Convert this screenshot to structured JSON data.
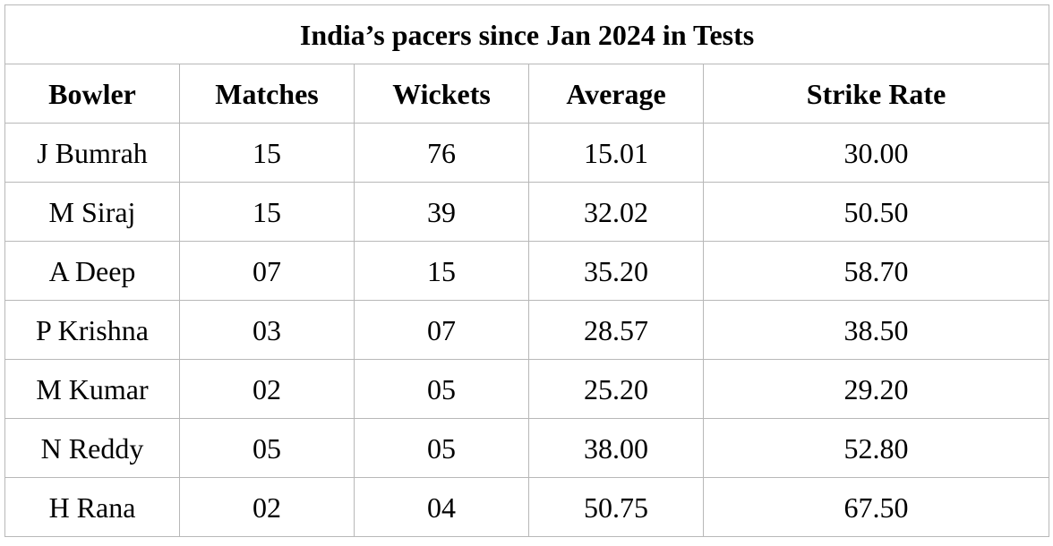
{
  "table": {
    "title": "India’s pacers since Jan 2024 in Tests",
    "headers": [
      "Bowler",
      "Matches",
      "Wickets",
      "Average",
      "Strike Rate"
    ],
    "rows": [
      [
        "J Bumrah",
        "15",
        "76",
        "15.01",
        "30.00"
      ],
      [
        "M Siraj",
        "15",
        "39",
        "32.02",
        "50.50"
      ],
      [
        "A Deep",
        "07",
        "15",
        "35.20",
        "58.70"
      ],
      [
        "P Krishna",
        "03",
        "07",
        "28.57",
        "38.50"
      ],
      [
        "M Kumar",
        "02",
        "05",
        "25.20",
        "29.20"
      ],
      [
        "N Reddy",
        "05",
        "05",
        "38.00",
        "52.80"
      ],
      [
        "H Rana",
        "02",
        "04",
        "50.75",
        "67.50"
      ]
    ],
    "colors": {
      "border": "#b8b8b8",
      "text": "#000000",
      "background": "#ffffff"
    }
  }
}
